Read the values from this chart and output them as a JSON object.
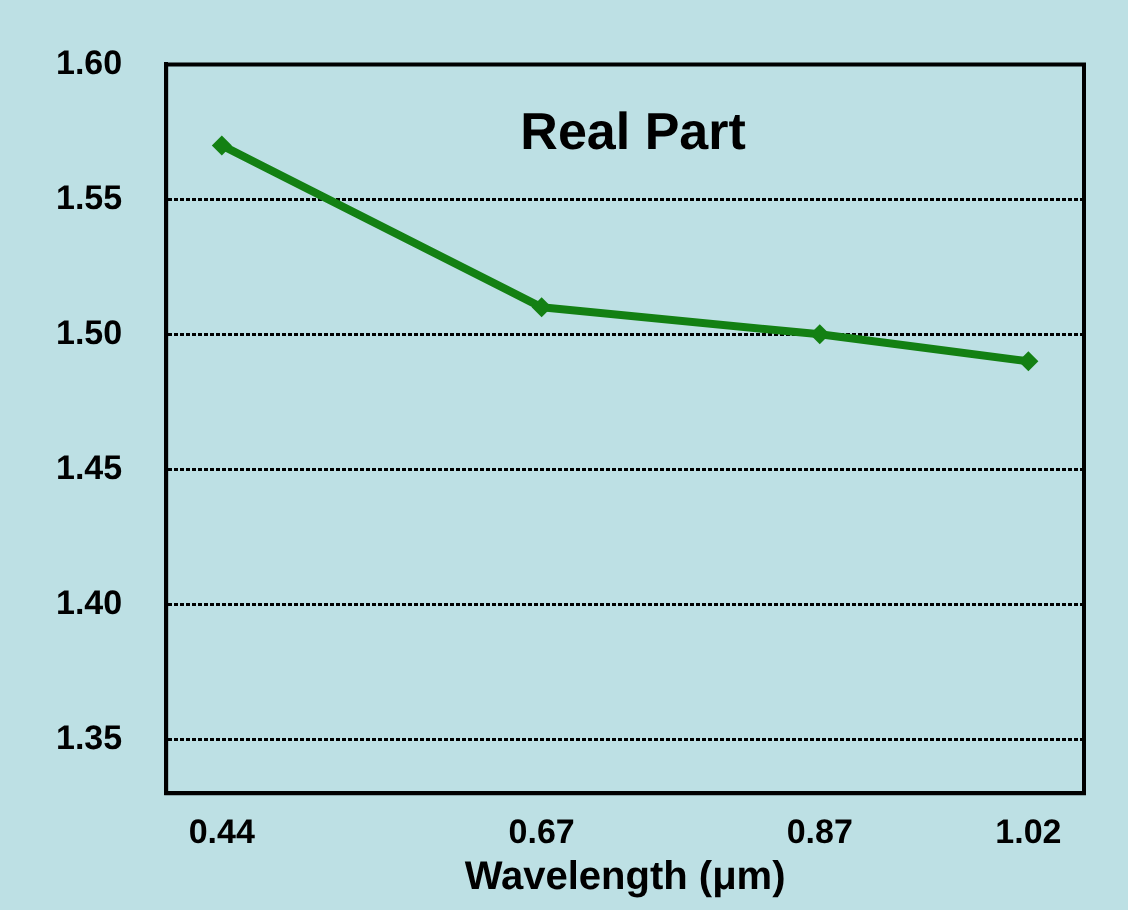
{
  "chart_data": {
    "type": "line",
    "title": "Real Part",
    "xlabel": "Wavelength (μm)",
    "x": [
      0.44,
      0.67,
      0.87,
      1.02
    ],
    "series": [
      {
        "color": "#138013",
        "values": [
          1.57,
          1.51,
          1.5,
          1.49
        ]
      }
    ],
    "xlim": [
      0.4,
      1.06
    ],
    "xticks": [
      0.44,
      0.67,
      0.87,
      1.02
    ],
    "ylim": [
      1.33,
      1.6
    ],
    "yticks": [
      1.35,
      {
        "value": 1.4,
        "label": "1.40"
      },
      1.45,
      {
        "value": 1.5,
        "label": "1.50"
      },
      1.55,
      {
        "value": 1.6,
        "label": "1.60"
      }
    ],
    "grid": "y",
    "legend": false,
    "marker": "diamond",
    "line_style": "solid"
  }
}
